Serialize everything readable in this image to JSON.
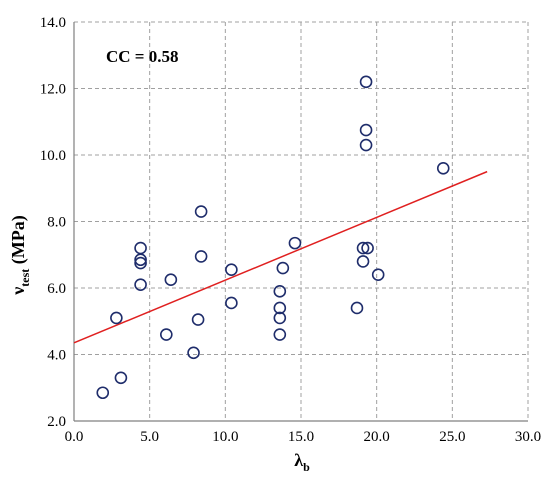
{
  "chart_data": {
    "type": "scatter",
    "xlabel": "λ",
    "xlabel_sub": "b",
    "ylabel": "ν",
    "ylabel_sub": "test",
    "ylabel_unit": " (MPa)",
    "xlim": [
      0.0,
      30.0
    ],
    "ylim": [
      2.0,
      14.0
    ],
    "x_ticks": [
      0.0,
      5.0,
      10.0,
      15.0,
      20.0,
      25.0,
      30.0
    ],
    "y_ticks": [
      2.0,
      4.0,
      6.0,
      8.0,
      10.0,
      12.0,
      14.0
    ],
    "x_tick_labels": [
      "0.0",
      "5.0",
      "10.0",
      "15.0",
      "20.0",
      "25.0",
      "30.0"
    ],
    "y_tick_labels": [
      "2.0",
      "4.0",
      "6.0",
      "8.0",
      "10.0",
      "12.0",
      "14.0"
    ],
    "grid": true,
    "annotation": "CC = 0.58",
    "colors": {
      "points": "#1f2d6b",
      "trend_line": "#e02020",
      "grid": "#a0a0a0"
    },
    "points": [
      {
        "x": 1.9,
        "y": 2.85
      },
      {
        "x": 2.8,
        "y": 5.1
      },
      {
        "x": 3.1,
        "y": 3.3
      },
      {
        "x": 4.4,
        "y": 7.2
      },
      {
        "x": 4.4,
        "y": 6.85
      },
      {
        "x": 4.4,
        "y": 6.75
      },
      {
        "x": 4.4,
        "y": 6.1
      },
      {
        "x": 6.1,
        "y": 4.6
      },
      {
        "x": 6.4,
        "y": 6.25
      },
      {
        "x": 7.9,
        "y": 4.05
      },
      {
        "x": 8.2,
        "y": 5.05
      },
      {
        "x": 8.4,
        "y": 8.3
      },
      {
        "x": 8.4,
        "y": 6.95
      },
      {
        "x": 10.4,
        "y": 6.55
      },
      {
        "x": 10.4,
        "y": 5.55
      },
      {
        "x": 13.6,
        "y": 5.9
      },
      {
        "x": 13.6,
        "y": 5.4
      },
      {
        "x": 13.6,
        "y": 5.1
      },
      {
        "x": 13.6,
        "y": 4.6
      },
      {
        "x": 13.8,
        "y": 6.6
      },
      {
        "x": 14.6,
        "y": 7.35
      },
      {
        "x": 18.7,
        "y": 5.4
      },
      {
        "x": 19.1,
        "y": 7.2
      },
      {
        "x": 19.1,
        "y": 6.8
      },
      {
        "x": 19.3,
        "y": 12.2
      },
      {
        "x": 19.3,
        "y": 10.75
      },
      {
        "x": 19.3,
        "y": 10.3
      },
      {
        "x": 19.4,
        "y": 7.2
      },
      {
        "x": 20.1,
        "y": 6.4
      },
      {
        "x": 24.4,
        "y": 9.6
      }
    ],
    "trend_line": {
      "x": [
        0.0,
        27.3
      ],
      "y": [
        4.35,
        9.5
      ]
    }
  }
}
